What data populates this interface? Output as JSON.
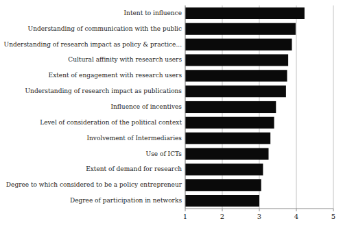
{
  "chart_data": {
    "type": "bar",
    "orientation": "horizontal",
    "categories": [
      "Degree of participation in networks",
      "Degree to which considered to be a policy entrepreneur",
      "Extent of demand for research",
      "Use of ICTs",
      "Involvement of Intermediaries",
      "Level of consideration  of the political context",
      "Influence of incentives",
      "Understanding of research impact as publications",
      "Extent of engagement with research users",
      "Cultural affinity with research users",
      "Understanding of research impact as policy  & practice...",
      "Understanding of communication with the public",
      "Intent to influence"
    ],
    "values": [
      3.0,
      3.05,
      3.1,
      3.25,
      3.3,
      3.4,
      3.45,
      3.72,
      3.75,
      3.78,
      3.88,
      3.98,
      4.22
    ],
    "color": "#0a0a0a",
    "xlim": [
      1,
      5
    ],
    "xticks": [
      1,
      2,
      3,
      4,
      5
    ],
    "grid": true
  }
}
